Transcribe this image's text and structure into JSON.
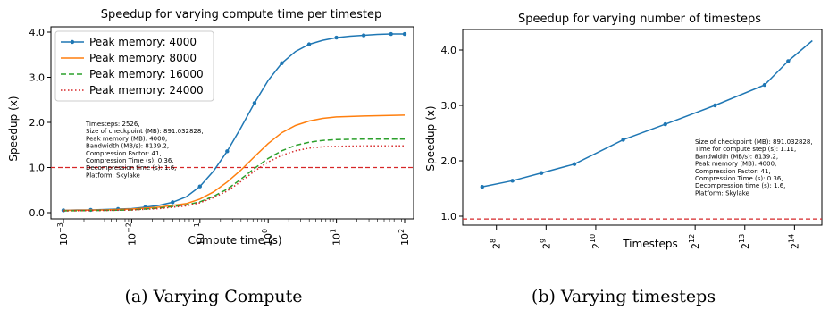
{
  "captions": [
    "(a) Varying Compute",
    "(b) Varying timesteps"
  ],
  "chart_data": [
    {
      "type": "line",
      "title": "Speedup for varying compute time per timestep",
      "xlabel": "Compute time (s)",
      "ylabel": "Speedup (x)",
      "xscale": "log",
      "xlim": [
        0.001,
        100
      ],
      "ylim": [
        0.0,
        4.0
      ],
      "yticks": [
        "0.0",
        "1.0",
        "2.0",
        "3.0",
        "4.0"
      ],
      "xtick_exponents": [
        "-3",
        "-2",
        "-1",
        "0",
        "1",
        "2"
      ],
      "legend": "top-left",
      "reference_line": {
        "y": 1.0,
        "color": "#d62728",
        "style": "dashed"
      },
      "annotation": [
        "Timesteps: 2526,",
        "Size of checkpoint (MB): 891.032828,",
        "Peak memory (MB): 4000,",
        "Bandwidth (MB/s): 8139.2,",
        "Compression Factor: 41,",
        "Compression Time (s): 0.36,",
        "Decompression time (s): 1.6,",
        "Platform: Skylake"
      ],
      "series": [
        {
          "name": "Peak memory: 4000",
          "color": "#1f77b4",
          "style": "solid-marker",
          "x": [
            0.001,
            0.00158,
            0.00251,
            0.00398,
            0.00631,
            0.01,
            0.0158,
            0.0251,
            0.0398,
            0.0631,
            0.1,
            0.158,
            0.251,
            0.398,
            0.631,
            1.0,
            1.58,
            2.51,
            3.98,
            6.31,
            10,
            15.8,
            25.1,
            39.8,
            63.1,
            100
          ],
          "y": [
            0.05,
            0.06,
            0.06,
            0.07,
            0.08,
            0.09,
            0.12,
            0.16,
            0.23,
            0.35,
            0.58,
            0.92,
            1.36,
            1.88,
            2.43,
            2.93,
            3.31,
            3.57,
            3.73,
            3.82,
            3.88,
            3.91,
            3.93,
            3.95,
            3.96,
            3.96
          ]
        },
        {
          "name": "Peak memory: 8000",
          "color": "#ff7f0e",
          "style": "solid",
          "x": [
            0.001,
            0.00398,
            0.01,
            0.0251,
            0.0631,
            0.1,
            0.158,
            0.251,
            0.398,
            0.631,
            1.0,
            1.58,
            2.51,
            3.98,
            6.31,
            10,
            25.1,
            100
          ],
          "y": [
            0.05,
            0.06,
            0.08,
            0.12,
            0.2,
            0.3,
            0.46,
            0.68,
            0.94,
            1.24,
            1.53,
            1.77,
            1.93,
            2.03,
            2.09,
            2.12,
            2.14,
            2.16
          ]
        },
        {
          "name": "Peak memory: 16000",
          "color": "#2ca02c",
          "style": "dashed",
          "x": [
            0.001,
            0.00398,
            0.01,
            0.0251,
            0.0631,
            0.1,
            0.158,
            0.251,
            0.398,
            0.631,
            1.0,
            1.58,
            2.51,
            3.98,
            6.31,
            10,
            25.1,
            100
          ],
          "y": [
            0.04,
            0.05,
            0.06,
            0.1,
            0.17,
            0.24,
            0.36,
            0.52,
            0.74,
            0.98,
            1.2,
            1.37,
            1.49,
            1.56,
            1.6,
            1.62,
            1.63,
            1.63
          ]
        },
        {
          "name": "Peak memory: 24000",
          "color": "#d62728",
          "style": "dotted",
          "x": [
            0.001,
            0.00398,
            0.01,
            0.0251,
            0.0631,
            0.1,
            0.158,
            0.251,
            0.398,
            0.631,
            1.0,
            1.58,
            2.51,
            3.98,
            6.31,
            10,
            25.1,
            100
          ],
          "y": [
            0.04,
            0.05,
            0.06,
            0.09,
            0.15,
            0.22,
            0.33,
            0.48,
            0.69,
            0.92,
            1.12,
            1.27,
            1.37,
            1.43,
            1.46,
            1.47,
            1.48,
            1.48
          ]
        }
      ]
    },
    {
      "type": "line",
      "title": "Speedup for varying number of timesteps",
      "xlabel": "Timesteps",
      "ylabel": "Speedup (x)",
      "xscale": "log2",
      "xlim": [
        160,
        24000
      ],
      "ylim": [
        0.9,
        4.2
      ],
      "yticks": [
        "1.0",
        "2.0",
        "3.0",
        "4.0"
      ],
      "xtick_exponents": [
        "8",
        "9",
        "10",
        "12",
        "13",
        "14"
      ],
      "legend": "none",
      "reference_line": {
        "y": 0.95,
        "color": "#d62728",
        "style": "dashed"
      },
      "annotation": [
        "Size of checkpoint (MB): 891.032828,",
        "Time for compute step (s): 1.11,",
        "Bandwidth (MB/s): 8139.2,",
        "Peak memory (MB): 4000,",
        "Compression Factor: 41,",
        "Compression Time (s): 0.36,",
        "Decompression time (s): 1.6,",
        "Platform: Skylake"
      ],
      "series": [
        {
          "color": "#1f77b4",
          "style": "solid-marker",
          "x": [
            210,
            320,
            480,
            760,
            1500,
            2700,
            5400,
            10800,
            15000,
            21000
          ],
          "y": [
            1.53,
            1.64,
            1.78,
            1.94,
            2.38,
            2.66,
            3.0,
            3.37,
            3.8,
            4.17
          ],
          "marker_x": [
            210,
            320,
            480,
            760,
            1500,
            2700,
            5400,
            10800,
            15000
          ]
        }
      ]
    }
  ]
}
